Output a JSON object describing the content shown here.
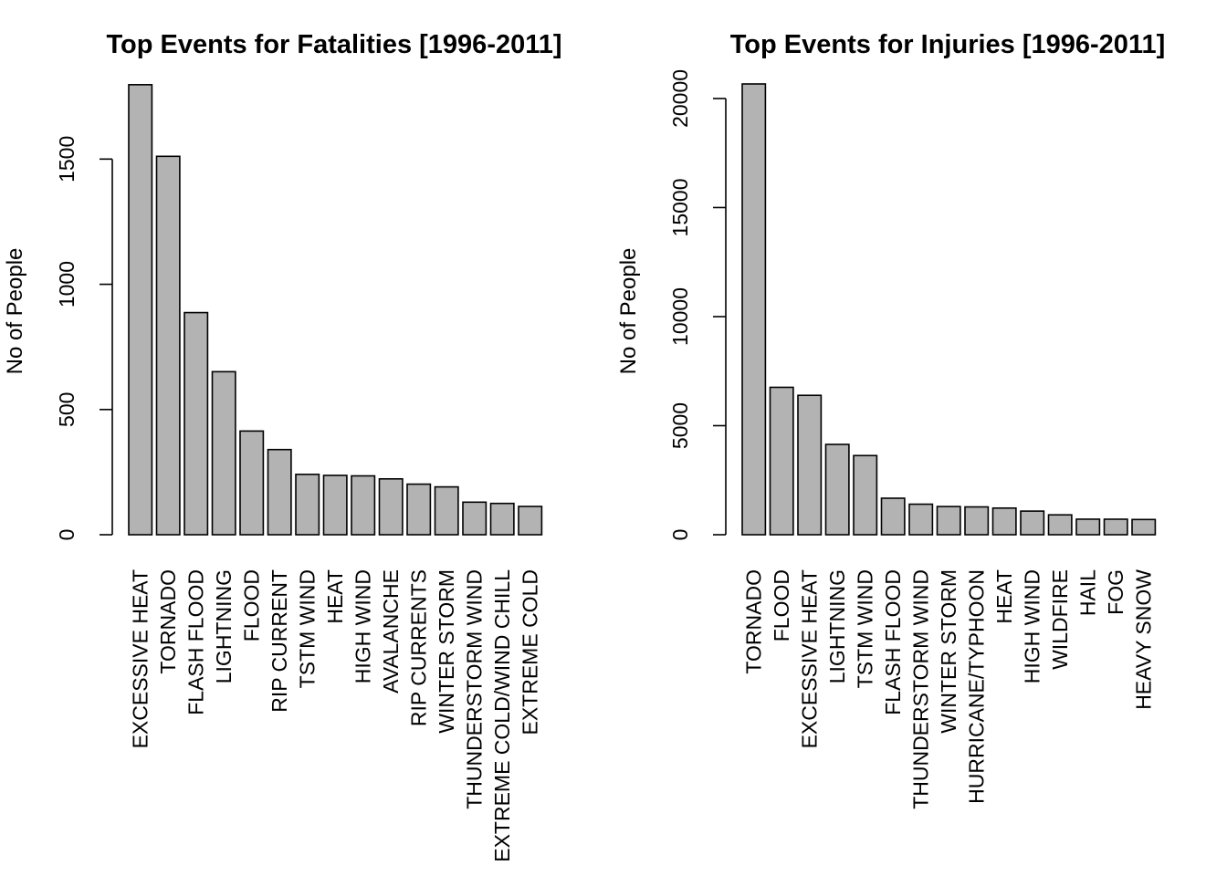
{
  "chart_data": [
    {
      "type": "bar",
      "title": "Top Events for Fatalities [1996-2011]",
      "ylabel": "No of People",
      "xlabel": "",
      "ylim": [
        0,
        1800
      ],
      "yticks": [
        0,
        500,
        1000,
        1500
      ],
      "grid": false,
      "categories": [
        "EXCESSIVE HEAT",
        "TORNADO",
        "FLASH FLOOD",
        "LIGHTNING",
        "FLOOD",
        "RIP CURRENT",
        "TSTM WIND",
        "HEAT",
        "HIGH WIND",
        "AVALANCHE",
        "RIP CURRENTS",
        "WINTER STORM",
        "THUNDERSTORM WIND",
        "EXTREME COLD/WIND CHILL",
        "EXTREME COLD"
      ],
      "values": [
        1797,
        1511,
        887,
        651,
        414,
        340,
        241,
        237,
        235,
        223,
        202,
        191,
        130,
        125,
        113
      ]
    },
    {
      "type": "bar",
      "title": "Top Events for Injuries [1996-2011]",
      "ylabel": "No of People",
      "xlabel": "",
      "ylim": [
        0,
        20667
      ],
      "yticks": [
        0,
        5000,
        10000,
        15000,
        20000
      ],
      "grid": false,
      "categories": [
        "TORNADO",
        "FLOOD",
        "EXCESSIVE HEAT",
        "LIGHTNING",
        "TSTM WIND",
        "FLASH FLOOD",
        "THUNDERSTORM WIND",
        "WINTER STORM",
        "HURRICANE/TYPHOON",
        "HEAT",
        "HIGH WIND",
        "WILDFIRE",
        "HAIL",
        "FOG",
        "HEAVY SNOW"
      ],
      "values": [
        20667,
        6758,
        6391,
        4141,
        3629,
        1674,
        1400,
        1292,
        1275,
        1222,
        1083,
        911,
        713,
        712,
        698
      ]
    }
  ]
}
